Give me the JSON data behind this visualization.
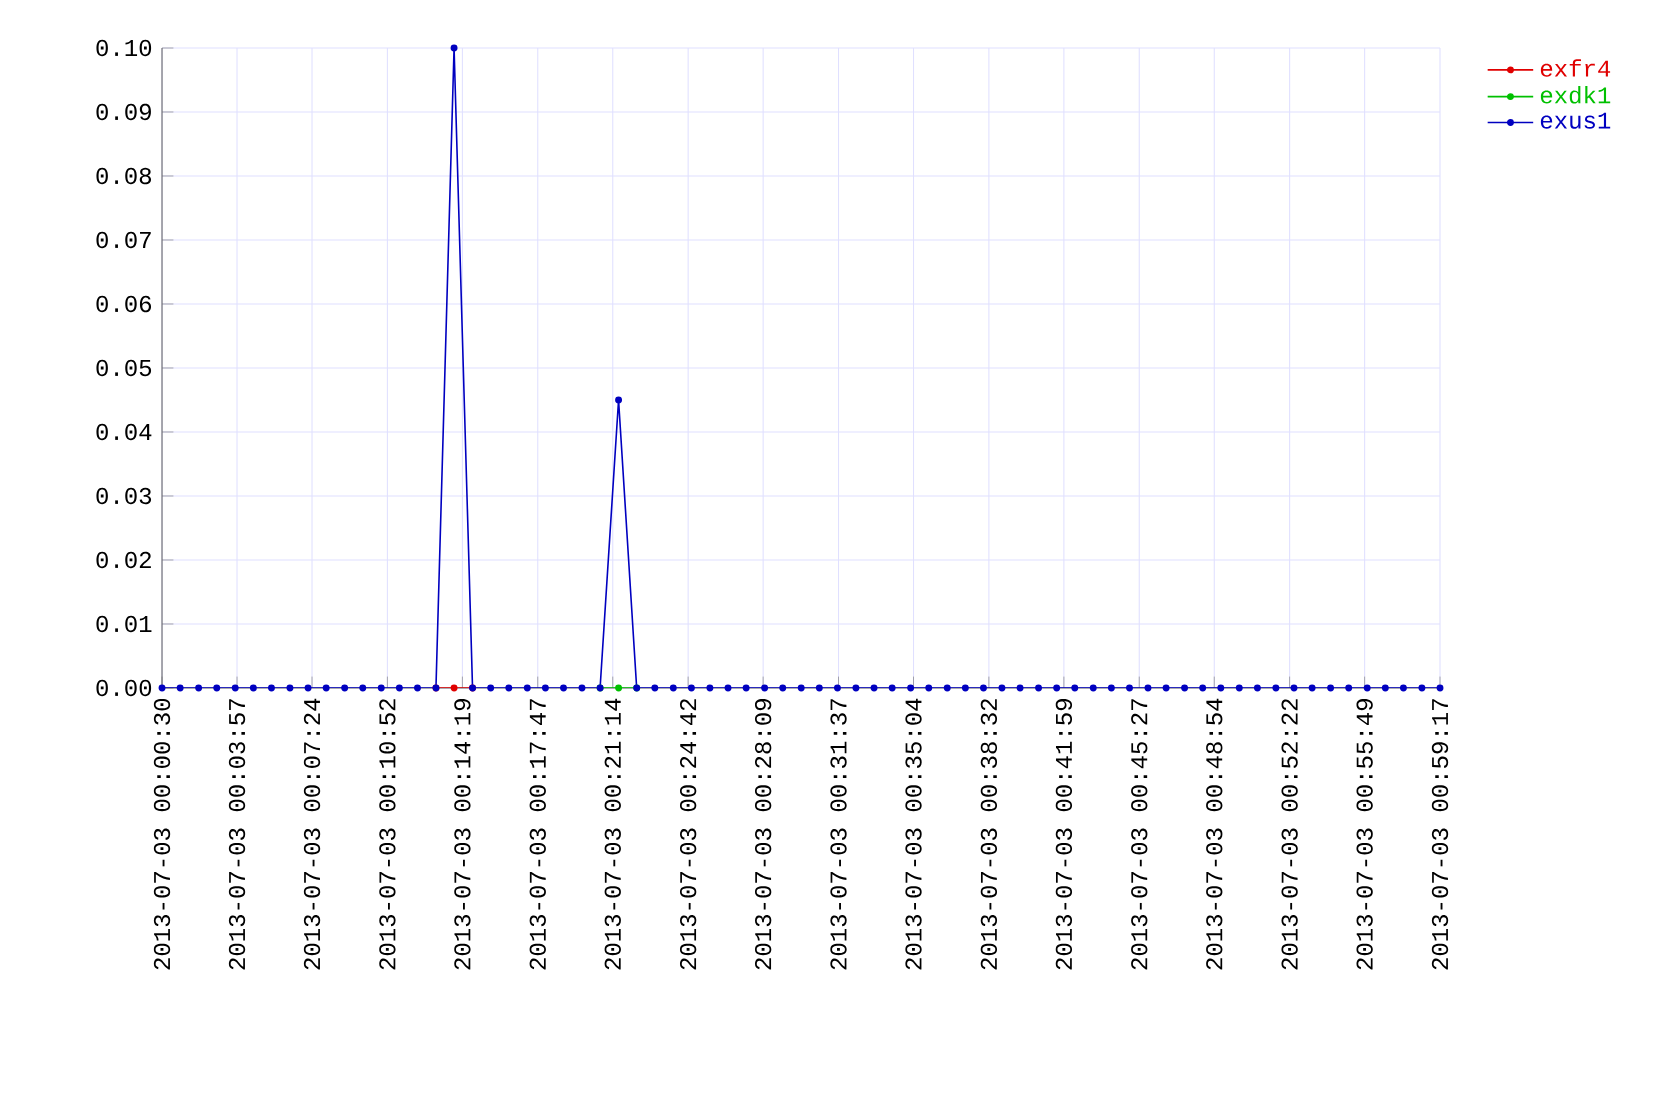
{
  "chart_data": {
    "type": "line",
    "x": [
      "2013-07-03T00:00:30",
      "2013-07-03T00:01:20",
      "2013-07-03T00:02:11",
      "2013-07-03T00:03:01",
      "2013-07-03T00:03:52",
      "2013-07-03T00:04:42",
      "2013-07-03T00:05:32",
      "2013-07-03T00:06:23",
      "2013-07-03T00:07:13",
      "2013-07-03T00:08:03",
      "2013-07-03T00:08:54",
      "2013-07-03T00:09:44",
      "2013-07-03T00:10:35",
      "2013-07-03T00:11:25",
      "2013-07-03T00:12:15",
      "2013-07-03T00:13:06",
      "2013-07-03T00:13:56",
      "2013-07-03T00:14:47",
      "2013-07-03T00:15:37",
      "2013-07-03T00:16:27",
      "2013-07-03T00:17:18",
      "2013-07-03T00:18:08",
      "2013-07-03T00:18:58",
      "2013-07-03T00:19:49",
      "2013-07-03T00:20:39",
      "2013-07-03T00:21:30",
      "2013-07-03T00:22:20",
      "2013-07-03T00:23:10",
      "2013-07-03T00:24:01",
      "2013-07-03T00:24:51",
      "2013-07-03T00:25:42",
      "2013-07-03T00:26:32",
      "2013-07-03T00:27:22",
      "2013-07-03T00:28:13",
      "2013-07-03T00:29:03",
      "2013-07-03T00:29:54",
      "2013-07-03T00:30:44",
      "2013-07-03T00:31:34",
      "2013-07-03T00:32:25",
      "2013-07-03T00:33:15",
      "2013-07-03T00:34:05",
      "2013-07-03T00:34:56",
      "2013-07-03T00:35:46",
      "2013-07-03T00:36:37",
      "2013-07-03T00:37:27",
      "2013-07-03T00:38:17",
      "2013-07-03T00:39:08",
      "2013-07-03T00:39:58",
      "2013-07-03T00:40:49",
      "2013-07-03T00:41:39",
      "2013-07-03T00:42:29",
      "2013-07-03T00:43:20",
      "2013-07-03T00:44:10",
      "2013-07-03T00:45:00",
      "2013-07-03T00:45:51",
      "2013-07-03T00:46:41",
      "2013-07-03T00:47:32",
      "2013-07-03T00:48:22",
      "2013-07-03T00:49:12",
      "2013-07-03T00:50:03",
      "2013-07-03T00:50:53",
      "2013-07-03T00:51:44",
      "2013-07-03T00:52:34",
      "2013-07-03T00:53:24",
      "2013-07-03T00:54:15",
      "2013-07-03T00:55:05",
      "2013-07-03T00:55:56",
      "2013-07-03T00:56:46",
      "2013-07-03T00:57:36",
      "2013-07-03T00:58:27",
      "2013-07-03T00:59:17"
    ],
    "series": [
      {
        "name": "exfr4",
        "color": "#e00000",
        "values": [
          null,
          null,
          null,
          null,
          null,
          null,
          null,
          null,
          null,
          null,
          null,
          null,
          null,
          null,
          null,
          0,
          0,
          0,
          null,
          null,
          null,
          null,
          null,
          null,
          null,
          null,
          null,
          null,
          null,
          null,
          null,
          null,
          null,
          null,
          null,
          null,
          null,
          null,
          null,
          null,
          null,
          null,
          null,
          null,
          null,
          null,
          null,
          null,
          null,
          null,
          null,
          null,
          null,
          null,
          null,
          null,
          null,
          null,
          null,
          null,
          null,
          null,
          null,
          null,
          null,
          null,
          null,
          null,
          null,
          null,
          null
        ]
      },
      {
        "name": "exdk1",
        "color": "#00c000",
        "values": [
          null,
          null,
          null,
          null,
          null,
          null,
          null,
          null,
          null,
          null,
          null,
          null,
          null,
          null,
          null,
          null,
          null,
          null,
          null,
          null,
          null,
          null,
          null,
          null,
          0,
          0,
          0,
          null,
          null,
          null,
          null,
          null,
          null,
          null,
          null,
          null,
          null,
          null,
          null,
          null,
          null,
          null,
          null,
          null,
          null,
          null,
          null,
          null,
          null,
          null,
          null,
          null,
          null,
          null,
          null,
          null,
          null,
          null,
          null,
          null,
          null,
          null,
          null,
          null,
          null,
          null,
          null,
          null,
          null,
          null,
          null
        ]
      },
      {
        "name": "exus1",
        "color": "#0000c0",
        "values": [
          0,
          0,
          0,
          0,
          0,
          0,
          0,
          0,
          0,
          0,
          0,
          0,
          0,
          0,
          0,
          0,
          0.1,
          0,
          0,
          0,
          0,
          0,
          0,
          0,
          0,
          0.045,
          0,
          0,
          0,
          0,
          0,
          0,
          0,
          0,
          0,
          0,
          0,
          0,
          0,
          0,
          0,
          0,
          0,
          0,
          0,
          0,
          0,
          0,
          0,
          0,
          0,
          0,
          0,
          0,
          0,
          0,
          0,
          0,
          0,
          0,
          0,
          0,
          0,
          0,
          0,
          0,
          0,
          0,
          0,
          0,
          0
        ]
      }
    ],
    "xlim": [
      "2013-07-03T00:00:30",
      "2013-07-03T00:59:17"
    ],
    "xticks": [
      {
        "value": "2013-07-03T00:00:30",
        "label": "2013-07-03 00:00:30"
      },
      {
        "value": "2013-07-03T00:03:57",
        "label": "2013-07-03 00:03:57"
      },
      {
        "value": "2013-07-03T00:07:24",
        "label": "2013-07-03 00:07:24"
      },
      {
        "value": "2013-07-03T00:10:52",
        "label": "2013-07-03 00:10:52"
      },
      {
        "value": "2013-07-03T00:14:19",
        "label": "2013-07-03 00:14:19"
      },
      {
        "value": "2013-07-03T00:17:47",
        "label": "2013-07-03 00:17:47"
      },
      {
        "value": "2013-07-03T00:21:14",
        "label": "2013-07-03 00:21:14"
      },
      {
        "value": "2013-07-03T00:24:42",
        "label": "2013-07-03 00:24:42"
      },
      {
        "value": "2013-07-03T00:28:09",
        "label": "2013-07-03 00:28:09"
      },
      {
        "value": "2013-07-03T00:31:37",
        "label": "2013-07-03 00:31:37"
      },
      {
        "value": "2013-07-03T00:35:04",
        "label": "2013-07-03 00:35:04"
      },
      {
        "value": "2013-07-03T00:38:32",
        "label": "2013-07-03 00:38:32"
      },
      {
        "value": "2013-07-03T00:41:59",
        "label": "2013-07-03 00:41:59"
      },
      {
        "value": "2013-07-03T00:45:27",
        "label": "2013-07-03 00:45:27"
      },
      {
        "value": "2013-07-03T00:48:54",
        "label": "2013-07-03 00:48:54"
      },
      {
        "value": "2013-07-03T00:52:22",
        "label": "2013-07-03 00:52:22"
      },
      {
        "value": "2013-07-03T00:55:49",
        "label": "2013-07-03 00:55:49"
      },
      {
        "value": "2013-07-03T00:59:17",
        "label": "2013-07-03 00:59:17"
      }
    ],
    "ylim": [
      0,
      0.1
    ],
    "yticks": [
      {
        "value": 0,
        "label": "0.00"
      },
      {
        "value": 0.01,
        "label": "0.01"
      },
      {
        "value": 0.02,
        "label": "0.02"
      },
      {
        "value": 0.03,
        "label": "0.03"
      },
      {
        "value": 0.04,
        "label": "0.04"
      },
      {
        "value": 0.05,
        "label": "0.05"
      },
      {
        "value": 0.06,
        "label": "0.06"
      },
      {
        "value": 0.07,
        "label": "0.07"
      },
      {
        "value": 0.08,
        "label": "0.08"
      },
      {
        "value": 0.09,
        "label": "0.09"
      },
      {
        "value": 0.1,
        "label": "0.10"
      }
    ],
    "grid": true,
    "legend": "top right",
    "marker": "circle",
    "line_style": "solid"
  }
}
